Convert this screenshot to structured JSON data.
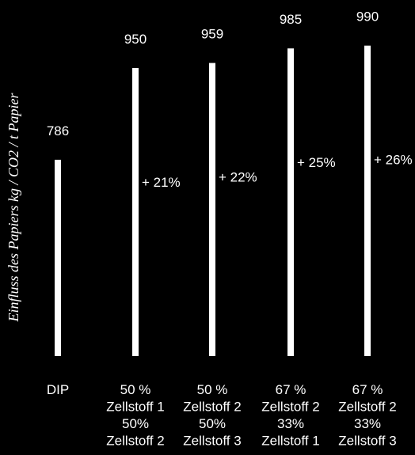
{
  "chart_data": {
    "type": "bar",
    "title": "",
    "xlabel": "",
    "ylabel": "Einfluss des Papiers kg / CO2 / t Papier",
    "categories": [
      [
        "DIP"
      ],
      [
        "50 %",
        "Zellstoff 1",
        "50%",
        "Zellstoff 2"
      ],
      [
        "50 %",
        "Zellstoff 2",
        "50%",
        "Zellstoff 3"
      ],
      [
        "67 %",
        "Zellstoff 2",
        "33%",
        "Zellstoff 1"
      ],
      [
        "67 %",
        "Zellstoff 2",
        "33%",
        "Zellstoff 3"
      ]
    ],
    "values": [
      786,
      950,
      959,
      985,
      990
    ],
    "value_labels": [
      "786",
      "950",
      "959",
      "985",
      "990"
    ],
    "change_labels": [
      "",
      "+ 21%",
      "+ 22%",
      "+ 25%",
      "+ 26%"
    ],
    "ylim": [
      0,
      1000
    ],
    "grid": false,
    "colors": {
      "background": "#000000",
      "bar": "#ffffff",
      "text": "#ffffff"
    }
  }
}
